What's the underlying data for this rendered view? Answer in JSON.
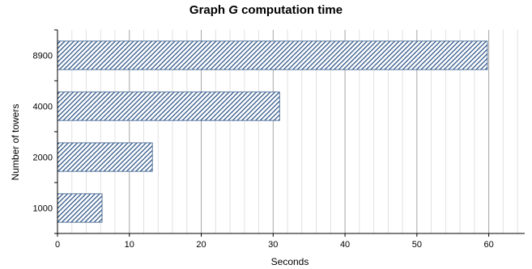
{
  "chart_data": {
    "type": "bar",
    "orientation": "horizontal",
    "title_prefix": "Graph ",
    "title_var": "G",
    "title_suffix": " computation time",
    "xlabel": "Seconds",
    "ylabel": "Number of towers",
    "categories": [
      "1000",
      "2000",
      "4000",
      "8900"
    ],
    "values": [
      6.2,
      13.2,
      30.9,
      59.8
    ],
    "xlim": [
      0,
      65
    ],
    "x_ticks": [
      0,
      10,
      20,
      30,
      40,
      50,
      60
    ],
    "x_minor_step": 2,
    "grid": true,
    "bar_fill": "#2f5688",
    "bar_pattern": "diagonal-hatch"
  }
}
